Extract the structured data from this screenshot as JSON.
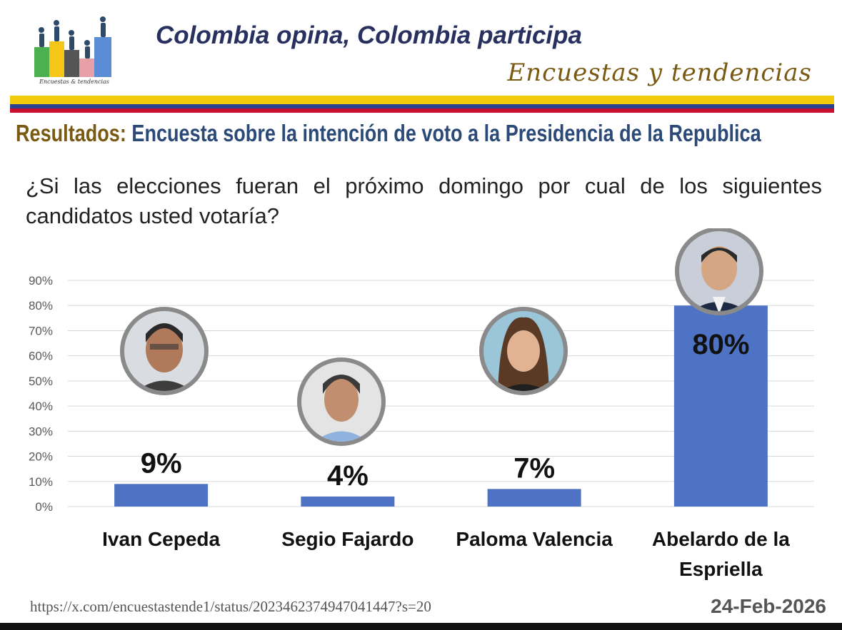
{
  "header": {
    "title": "Colombia opina, Colombia participa",
    "tagline": "Encuestas y tendencias",
    "logo_caption": "Encuestas & tendencias"
  },
  "result": {
    "label": "Resultados:",
    "subject": "Encuesta sobre la intención de voto a la  Presidencia de la Republica"
  },
  "question": "¿Si las elecciones fueran el próximo domingo por cual de los siguientes candidatos usted votaría?",
  "colors": {
    "bar": "#4f73c4",
    "header_title": "#27305e",
    "tagline": "#7a5a12",
    "result_label": "#7a5a12",
    "result_subject": "#2c4a77",
    "flag_yellow": "#f2cb0c",
    "flag_blue": "#2a4391",
    "flag_red": "#c8102e"
  },
  "chart_data": {
    "type": "bar",
    "categories": [
      "Ivan Cepeda",
      "Segio Fajardo",
      "Paloma Valencia",
      "Abelardo de la Espriella"
    ],
    "category_lines": [
      [
        "Ivan Cepeda"
      ],
      [
        "Segio Fajardo"
      ],
      [
        "Paloma Valencia"
      ],
      [
        "Abelardo de la",
        "Espriella"
      ]
    ],
    "values": [
      9,
      4,
      7,
      80
    ],
    "data_labels": [
      "9%",
      "4%",
      "7%",
      "80%"
    ],
    "ylim": [
      0,
      90
    ],
    "y_ticks": [
      0,
      10,
      20,
      30,
      40,
      50,
      60,
      70,
      80,
      90
    ],
    "y_tick_labels": [
      "0%",
      "10%",
      "20%",
      "30%",
      "40%",
      "50%",
      "60%",
      "70%",
      "80%",
      "90%"
    ],
    "grid": true,
    "candidate_photos": true
  },
  "footer": {
    "source_url": "https://x.com/encuestastende1/status/2023462374947041447?s=20",
    "date": "24-Feb-2026"
  }
}
